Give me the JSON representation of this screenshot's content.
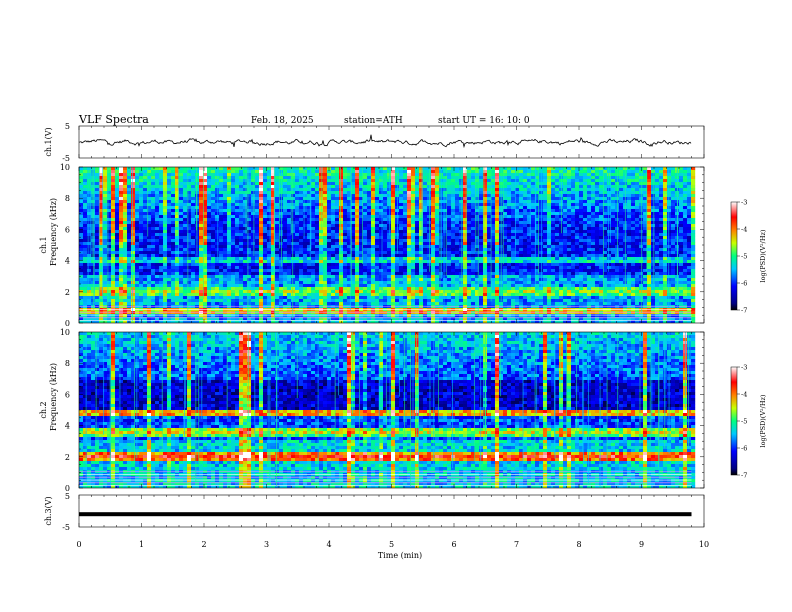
{
  "header": {
    "title": "VLF  Spectra",
    "date": "Feb. 18, 2025",
    "station": "station=ATH",
    "start": "start  UT  =   16: 10: 0"
  },
  "chart_data": [
    {
      "type": "line",
      "name": "ch1-waveform",
      "ylabel": "ch.1(V)",
      "ylim": [
        -5,
        5
      ],
      "yticks": [
        "5",
        "-5"
      ],
      "xlim": [
        0,
        10
      ],
      "note_level": 0
    },
    {
      "type": "heatmap",
      "name": "ch1-spectrogram",
      "ylabel_top": "ch.1",
      "ylabel": "Frequency (kHz)",
      "ylim": [
        0,
        10
      ],
      "yticks": [
        "0",
        "2",
        "4",
        "6",
        "8",
        "10"
      ],
      "xlim": [
        0,
        10
      ],
      "data_xmax": 9.8,
      "colorbar": {
        "label": "log(PSD)(V²/Hz)",
        "range": [
          -7,
          -3
        ],
        "ticks": [
          "-3",
          "-4",
          "-5",
          "-6",
          "-7"
        ]
      },
      "bands": [
        {
          "freq": 2.0,
          "level": -4.6
        },
        {
          "freq": 0.8,
          "level": -4.2
        },
        {
          "freq": 4.0,
          "level": -5.2
        }
      ]
    },
    {
      "type": "heatmap",
      "name": "ch2-spectrogram",
      "ylabel_top": "ch.2",
      "ylabel": "Frequency (kHz)",
      "ylim": [
        0,
        10
      ],
      "yticks": [
        "0",
        "2",
        "4",
        "6",
        "8",
        "10"
      ],
      "xlim": [
        0,
        10
      ],
      "data_xmax": 9.8,
      "colorbar": {
        "label": "log(PSD)(V²/Hz)",
        "range": [
          -7,
          -3
        ],
        "ticks": [
          "-3",
          "-4",
          "-5",
          "-6",
          "-7"
        ]
      },
      "bands": [
        {
          "freq": 2.0,
          "level": -3.6
        },
        {
          "freq": 3.6,
          "level": -4.4
        },
        {
          "freq": 4.8,
          "level": -4.0
        }
      ]
    },
    {
      "type": "line",
      "name": "ch3-waveform",
      "ylabel": "ch.3(V)",
      "ylim": [
        -5,
        5
      ],
      "yticks": [
        "5",
        "-5"
      ],
      "xlim": [
        0,
        10
      ],
      "xlabel": "Time  (min)",
      "xticks": [
        "0",
        "1",
        "2",
        "3",
        "4",
        "5",
        "6",
        "7",
        "8",
        "9",
        "10"
      ],
      "constant_level": -1.0
    }
  ]
}
